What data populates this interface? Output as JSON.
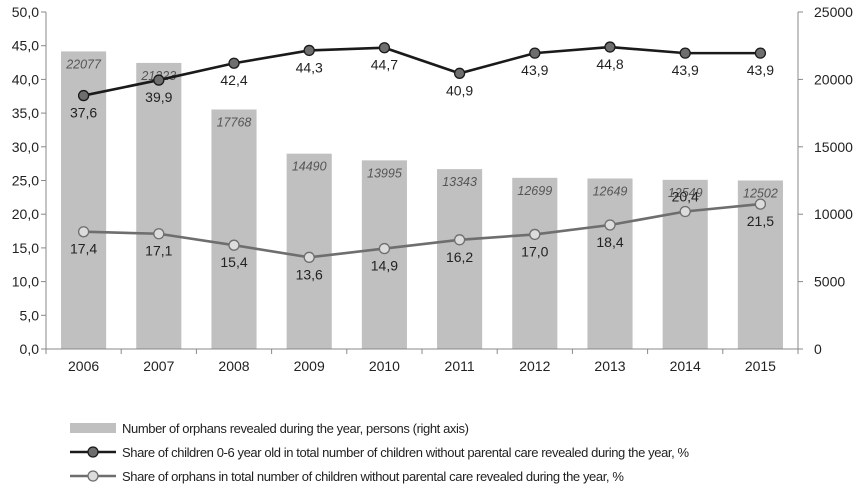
{
  "chart_data": {
    "type": "bar+line",
    "categories": [
      "2006",
      "2007",
      "2008",
      "2009",
      "2010",
      "2011",
      "2012",
      "2013",
      "2014",
      "2015"
    ],
    "bar_series": {
      "name": "Number of orphans revealed during the year, persons (right axis)",
      "values": [
        22077,
        21223,
        17768,
        14490,
        13995,
        13343,
        12699,
        12649,
        12549,
        12502
      ],
      "labels": [
        "22077",
        "21223",
        "17768",
        "14490",
        "13995",
        "13343",
        "12699",
        "12649",
        "12549",
        "12502"
      ],
      "axis": "right",
      "color": "#c0c0c0"
    },
    "line_series": [
      {
        "name": "Share of children 0-6 year old in total number of children without parental care revealed during the year, %",
        "values": [
          37.6,
          39.9,
          42.4,
          44.3,
          44.7,
          40.9,
          43.9,
          44.8,
          43.9,
          43.9
        ],
        "labels": [
          "37,6",
          "39,9",
          "42,4",
          "44,3",
          "44,7",
          "40,9",
          "43,9",
          "44,8",
          "43,9",
          "43,9"
        ],
        "label_pos": [
          "below",
          "below",
          "below",
          "below",
          "below",
          "below",
          "below",
          "below",
          "below",
          "below"
        ],
        "axis": "left",
        "color": "#1a1a1a",
        "marker_fill": "#6e6e6e"
      },
      {
        "name": "Share of orphans in total number of children without parental care revealed during the year, %",
        "values": [
          17.4,
          17.1,
          15.4,
          13.6,
          14.9,
          16.2,
          17.0,
          18.4,
          20.4,
          21.5
        ],
        "labels": [
          "17,4",
          "17,1",
          "15,4",
          "13,6",
          "14,9",
          "16,2",
          "17,0",
          "18,4",
          "20,4",
          "21,5"
        ],
        "label_pos": [
          "below",
          "below",
          "below",
          "below",
          "below",
          "below",
          "below",
          "below",
          "above",
          "below"
        ],
        "axis": "left",
        "color": "#6e6e6e",
        "marker_fill": "#dcdcdc"
      }
    ],
    "left_axis": {
      "ylim": [
        0,
        50
      ],
      "ticks": [
        "0,0",
        "5,0",
        "10,0",
        "15,0",
        "20,0",
        "25,0",
        "30,0",
        "35,0",
        "40,0",
        "45,0",
        "50,0"
      ]
    },
    "right_axis": {
      "ylim": [
        0,
        25000
      ],
      "ticks": [
        "0",
        "5000",
        "10000",
        "15000",
        "20000",
        "25000"
      ]
    },
    "grid": false,
    "legend_position": "bottom"
  }
}
